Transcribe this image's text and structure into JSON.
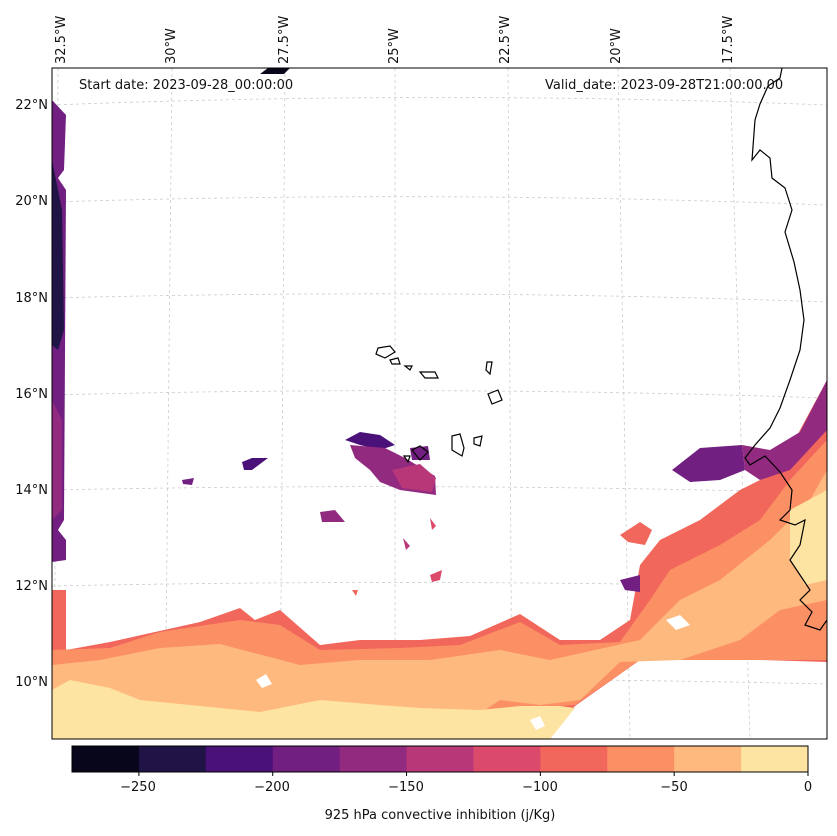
{
  "header": {
    "start_date": "Start date: 2023-09-28_00:00:00",
    "valid_date": "Valid_date: 2023-09-28T21:00:00.00"
  },
  "lon_labels": [
    "32.5°W",
    "30°W",
    "27.5°W",
    "25°W",
    "22.5°W",
    "20°W",
    "17.5°W"
  ],
  "lat_labels": [
    "22°N",
    "20°N",
    "18°N",
    "16°N",
    "14°N",
    "12°N",
    "10°N"
  ],
  "colorbar": {
    "label": "925 hPa convective inhibition (j/Kg)",
    "ticks": [
      "−250",
      "−200",
      "−150",
      "−100",
      "−50",
      "0"
    ],
    "levels": [
      -275,
      -250,
      -225,
      -200,
      -175,
      -150,
      -125,
      -100,
      -75,
      -50,
      -25,
      0
    ],
    "colors": [
      "#07061a",
      "#201447",
      "#4a1179",
      "#711f81",
      "#922a80",
      "#b73779",
      "#dc4a6b",
      "#f2675c",
      "#fc9065",
      "#feb97f",
      "#fde4a2"
    ]
  },
  "colors": {
    "coastline": "#000000",
    "grid": "#cccccc"
  }
}
